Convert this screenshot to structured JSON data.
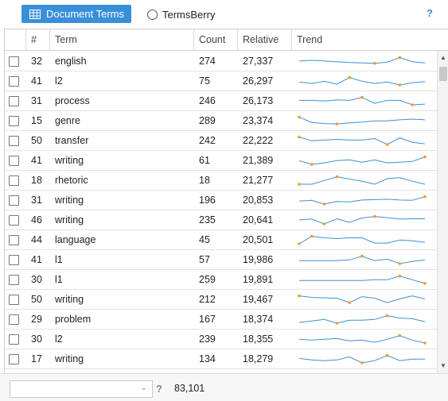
{
  "toolbar": {
    "tab_label": "Document Terms",
    "tab_icon": "grid-table-icon",
    "radio_label": "TermsBerry",
    "help_symbol": "?"
  },
  "table": {
    "columns": [
      "#",
      "Term",
      "Count",
      "Relative",
      "Trend"
    ],
    "rows": [
      {
        "num": "32",
        "term": "english",
        "count": "274",
        "relative": "27,337",
        "trend": [
          0.55,
          0.65,
          0.55,
          0.45,
          0.35,
          0.3,
          0.25,
          0.4,
          1.0,
          0.45,
          0.3
        ]
      },
      {
        "num": "41",
        "term": "l2",
        "count": "75",
        "relative": "26,297",
        "trend": [
          0.4,
          0.2,
          0.5,
          0.1,
          1.0,
          0.5,
          0.2,
          0.4,
          0.0,
          0.3,
          0.45
        ]
      },
      {
        "num": "31",
        "term": "process",
        "count": "246",
        "relative": "26,173",
        "trend": [
          0.6,
          0.6,
          0.5,
          0.65,
          0.6,
          1.0,
          0.2,
          0.6,
          0.6,
          0.0,
          0.1
        ]
      },
      {
        "num": "15",
        "term": "genre",
        "count": "289",
        "relative": "23,374",
        "trend": [
          1.0,
          0.3,
          0.15,
          0.1,
          0.25,
          0.35,
          0.5,
          0.5,
          0.65,
          0.75,
          0.65
        ]
      },
      {
        "num": "50",
        "term": "transfer",
        "count": "242",
        "relative": "22,222",
        "trend": [
          1.0,
          0.5,
          0.6,
          0.7,
          0.6,
          0.6,
          0.8,
          0.0,
          0.9,
          0.3,
          0.1
        ]
      },
      {
        "num": "41",
        "term": "writing",
        "count": "61",
        "relative": "21,389",
        "trend": [
          0.5,
          0.0,
          0.2,
          0.5,
          0.6,
          0.3,
          0.6,
          0.2,
          0.3,
          0.4,
          1.0
        ]
      },
      {
        "num": "18",
        "term": "rhetoric",
        "count": "18",
        "relative": "21,277",
        "trend": [
          0.0,
          0.0,
          0.5,
          1.0,
          0.7,
          0.4,
          0.0,
          0.75,
          0.9,
          0.4,
          0.0
        ]
      },
      {
        "num": "31",
        "term": "writing",
        "count": "196",
        "relative": "20,853",
        "trend": [
          0.4,
          0.5,
          0.0,
          0.35,
          0.3,
          0.55,
          0.6,
          0.65,
          0.55,
          0.5,
          1.0
        ]
      },
      {
        "num": "46",
        "term": "writing",
        "count": "235",
        "relative": "20,641",
        "trend": [
          0.55,
          0.65,
          0.0,
          0.7,
          0.2,
          0.8,
          1.0,
          0.85,
          0.65,
          0.7,
          0.7
        ]
      },
      {
        "num": "44",
        "term": "language",
        "count": "45",
        "relative": "20,501",
        "trend": [
          0.0,
          1.0,
          0.8,
          0.7,
          0.8,
          0.8,
          0.1,
          0.1,
          0.5,
          0.4,
          0.2
        ]
      },
      {
        "num": "41",
        "term": "l1",
        "count": "57",
        "relative": "19,986",
        "trend": [
          0.4,
          0.4,
          0.4,
          0.4,
          0.5,
          1.0,
          0.4,
          0.6,
          0.0,
          0.3,
          0.5
        ]
      },
      {
        "num": "30",
        "term": "l1",
        "count": "259",
        "relative": "19,891",
        "trend": [
          0.4,
          0.4,
          0.4,
          0.4,
          0.4,
          0.4,
          0.5,
          0.5,
          1.0,
          0.5,
          0.0
        ]
      },
      {
        "num": "50",
        "term": "writing",
        "count": "212",
        "relative": "19,467",
        "trend": [
          1.0,
          0.8,
          0.75,
          0.7,
          0.1,
          0.9,
          0.7,
          0.1,
          0.6,
          1.0,
          0.6
        ]
      },
      {
        "num": "29",
        "term": "problem",
        "count": "167",
        "relative": "18,374",
        "trend": [
          0.1,
          0.3,
          0.5,
          0.0,
          0.4,
          0.4,
          0.5,
          1.0,
          0.7,
          0.6,
          0.2
        ]
      },
      {
        "num": "30",
        "term": "l2",
        "count": "239",
        "relative": "18,355",
        "trend": [
          0.5,
          0.4,
          0.5,
          0.6,
          0.3,
          0.4,
          0.1,
          0.5,
          1.0,
          0.4,
          0.0
        ]
      },
      {
        "num": "17",
        "term": "writing",
        "count": "134",
        "relative": "18,279",
        "trend": [
          0.6,
          0.4,
          0.3,
          0.4,
          0.8,
          0.0,
          0.3,
          1.0,
          0.3,
          0.5,
          0.5
        ]
      }
    ]
  },
  "footer": {
    "select_value": "",
    "help_symbol": "?",
    "total": "83,101"
  },
  "colors": {
    "accent": "#3a8fd9",
    "spark_line": "#3d8fd8",
    "spark_point": "#f39a2b"
  }
}
